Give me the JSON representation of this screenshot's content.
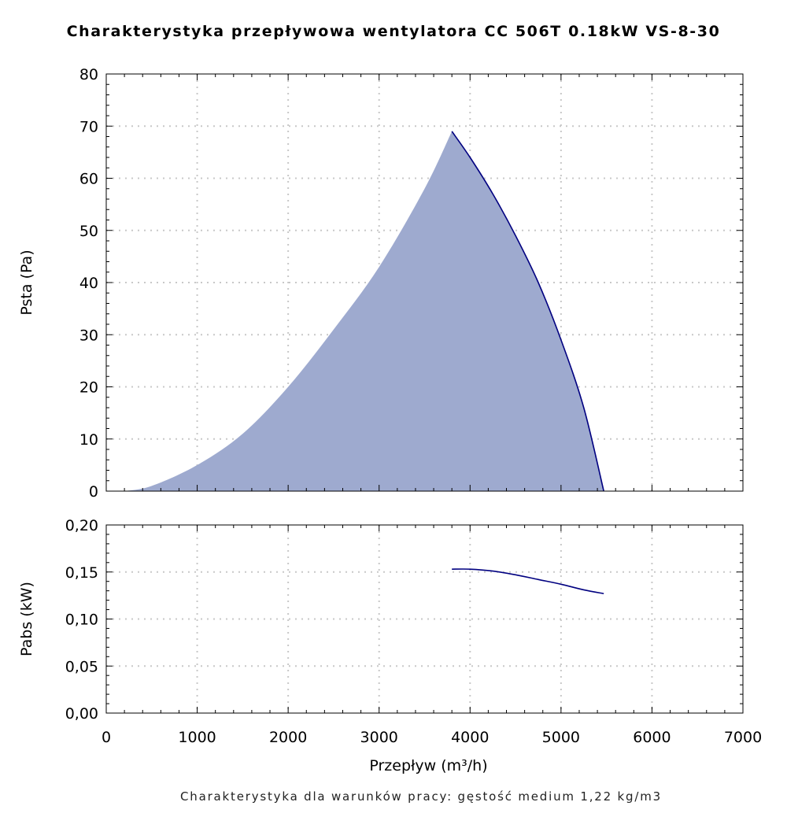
{
  "chart_data": [
    {
      "type": "area",
      "title": "Charakterystyka przepływowa wentylatora CC 506T 0.18kW VS-8-30",
      "xlabel": "",
      "ylabel": "Psta (Pa)",
      "xlim": [
        0,
        7000
      ],
      "ylim": [
        0,
        80
      ],
      "xticks": [
        0,
        1000,
        2000,
        3000,
        4000,
        5000,
        6000,
        7000
      ],
      "yticks": [
        0,
        10,
        20,
        30,
        40,
        50,
        60,
        70,
        80
      ],
      "ytick_labels": [
        "0",
        "10",
        "20",
        "30",
        "40",
        "50",
        "60",
        "70",
        "80"
      ],
      "grid": true,
      "fill_color": "#9eaacf",
      "line_color": "#000080",
      "fill_boundary": {
        "x": [
          200,
          500,
          1000,
          1500,
          2000,
          2500,
          3000,
          3500,
          3800
        ],
        "y": [
          0,
          1,
          5,
          11,
          20,
          31,
          43,
          58,
          69
        ]
      },
      "series": [
        {
          "x": [
            3800,
            4000,
            4250,
            4500,
            4750,
            5000,
            5250,
            5470
          ],
          "y": [
            69,
            64,
            57,
            49,
            40,
            29,
            16,
            0
          ]
        }
      ]
    },
    {
      "type": "line",
      "title": "",
      "xlabel": "Przepływ (m³/h)",
      "ylabel": "Pabs (kW)",
      "xlim": [
        0,
        7000
      ],
      "ylim": [
        0,
        0.2
      ],
      "xticks": [
        0,
        1000,
        2000,
        3000,
        4000,
        5000,
        6000,
        7000
      ],
      "xtick_labels": [
        "0",
        "1000",
        "2000",
        "3000",
        "4000",
        "5000",
        "6000",
        "7000"
      ],
      "yticks": [
        0,
        0.05,
        0.1,
        0.15,
        0.2
      ],
      "ytick_labels": [
        "0,00",
        "0,05",
        "0,10",
        "0,15",
        "0,20"
      ],
      "grid": true,
      "line_color": "#000080",
      "series": [
        {
          "x": [
            3800,
            4000,
            4250,
            4500,
            4750,
            5000,
            5250,
            5470
          ],
          "y": [
            0.153,
            0.153,
            0.151,
            0.147,
            0.142,
            0.137,
            0.131,
            0.127
          ]
        }
      ]
    }
  ],
  "footnote": "Charakterystyka dla warunków pracy: gęstość medium 1,22 kg/m3"
}
